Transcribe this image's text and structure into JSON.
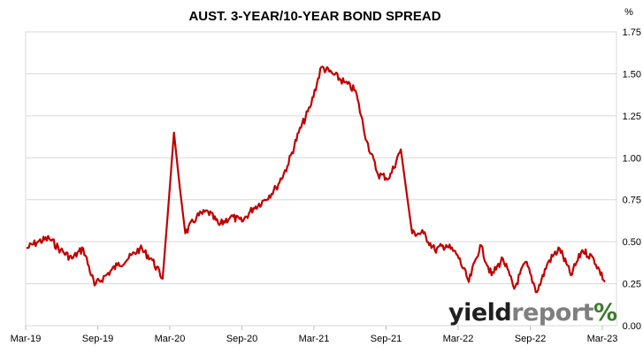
{
  "chart_data": {
    "type": "line",
    "title": "AUST. 3-YEAR/10-YEAR BOND SPREAD",
    "y_unit": "%",
    "xlabel": "",
    "ylabel": "",
    "ylim": [
      0,
      1.75
    ],
    "y_ticks": [
      "0.00",
      "0.25",
      "0.50",
      "0.75",
      "1.00",
      "1.25",
      "1.50",
      "1.75"
    ],
    "x_ticks": [
      "Mar-19",
      "Sep-19",
      "Mar-20",
      "Sep-20",
      "Mar-21",
      "Sep-21",
      "Mar-22",
      "Sep-22",
      "Mar-23"
    ],
    "grid": "horizontal",
    "legend": "none",
    "series_color": "#c00000",
    "series": [
      {
        "x": [
          "2019-03",
          "2019-04",
          "2019-05",
          "2019-06",
          "2019-07",
          "2019-08",
          "2019-09",
          "2019-10",
          "2019-11",
          "2019-12",
          "2020-01",
          "2020-02",
          "2020-03-a",
          "2020-03-b",
          "2020-03-c",
          "2020-04",
          "2020-05",
          "2020-06",
          "2020-07",
          "2020-08",
          "2020-09",
          "2020-10",
          "2020-11",
          "2020-12",
          "2021-01",
          "2021-02",
          "2021-03",
          "2021-04",
          "2021-05",
          "2021-06",
          "2021-07",
          "2021-08",
          "2021-09",
          "2021-10-a",
          "2021-10-b",
          "2021-11",
          "2021-12",
          "2022-01",
          "2022-02",
          "2022-03",
          "2022-04",
          "2022-05",
          "2022-06",
          "2022-07",
          "2022-08",
          "2022-09",
          "2022-10",
          "2022-11",
          "2022-12",
          "2023-01",
          "2023-02",
          "2023-03"
        ],
        "values": [
          0.46,
          0.5,
          0.52,
          0.45,
          0.4,
          0.46,
          0.24,
          0.3,
          0.36,
          0.4,
          0.46,
          0.4,
          0.28,
          1.15,
          0.55,
          0.65,
          0.68,
          0.6,
          0.65,
          0.62,
          0.7,
          0.75,
          0.82,
          0.95,
          1.15,
          1.3,
          1.54,
          1.5,
          1.45,
          1.4,
          1.1,
          0.9,
          0.88,
          1.05,
          0.55,
          0.55,
          0.45,
          0.48,
          0.42,
          0.26,
          0.48,
          0.3,
          0.4,
          0.22,
          0.38,
          0.2,
          0.38,
          0.46,
          0.3,
          0.45,
          0.4,
          0.26
        ]
      }
    ],
    "brand": {
      "part1": "yield",
      "part2": "report",
      "symbol": "%"
    }
  }
}
